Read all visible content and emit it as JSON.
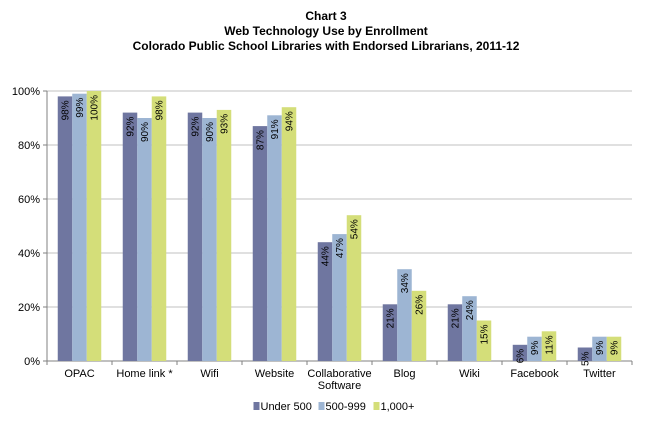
{
  "chart_data": {
    "type": "bar",
    "title_lines": [
      "Chart 3",
      "Web Technology Use by Enrollment",
      "Colorado Public School Libraries with Endorsed Librarians, 2011-12"
    ],
    "categories": [
      [
        "OPAC"
      ],
      [
        "Home link *"
      ],
      [
        "Wifi"
      ],
      [
        "Website"
      ],
      [
        "Collaborative",
        "Software"
      ],
      [
        "Blog"
      ],
      [
        "Wiki"
      ],
      [
        "Facebook"
      ],
      [
        "Twitter"
      ]
    ],
    "series": [
      {
        "name": "Under 500",
        "color": "#6f76a0",
        "values": [
          98,
          92,
          92,
          87,
          44,
          21,
          21,
          6,
          5
        ]
      },
      {
        "name": "500-999",
        "color": "#9db5d3",
        "values": [
          99,
          90,
          90,
          91,
          47,
          34,
          24,
          9,
          9
        ]
      },
      {
        "name": "1,000+",
        "color": "#d4de79",
        "values": [
          100,
          98,
          93,
          94,
          54,
          26,
          15,
          11,
          9
        ]
      }
    ],
    "ylim": [
      0,
      100
    ],
    "yticks": [
      "0%",
      "20%",
      "40%",
      "60%",
      "80%",
      "100%"
    ],
    "ytick_values": [
      0,
      20,
      40,
      60,
      80,
      100
    ],
    "grid": true,
    "legend_position": "bottom"
  }
}
